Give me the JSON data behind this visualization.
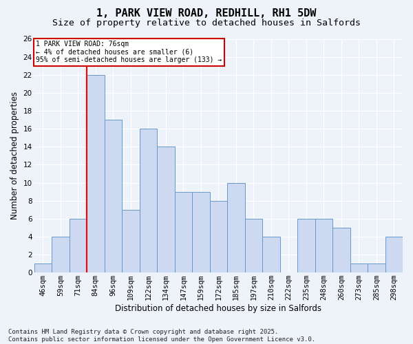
{
  "title": "1, PARK VIEW ROAD, REDHILL, RH1 5DW",
  "subtitle": "Size of property relative to detached houses in Salfords",
  "xlabel": "Distribution of detached houses by size in Salfords",
  "ylabel": "Number of detached properties",
  "categories": [
    "46sqm",
    "59sqm",
    "71sqm",
    "84sqm",
    "96sqm",
    "109sqm",
    "122sqm",
    "134sqm",
    "147sqm",
    "159sqm",
    "172sqm",
    "185sqm",
    "197sqm",
    "210sqm",
    "222sqm",
    "235sqm",
    "248sqm",
    "260sqm",
    "273sqm",
    "285sqm",
    "298sqm"
  ],
  "values": [
    1,
    4,
    6,
    22,
    17,
    7,
    16,
    14,
    9,
    9,
    8,
    10,
    6,
    4,
    0,
    6,
    6,
    5,
    1,
    1,
    4
  ],
  "bar_color": "#ccd9f0",
  "bar_edge_color": "#6699cc",
  "red_line_index": 2,
  "ylim": [
    0,
    26
  ],
  "yticks": [
    0,
    2,
    4,
    6,
    8,
    10,
    12,
    14,
    16,
    18,
    20,
    22,
    24,
    26
  ],
  "annotation_text": "1 PARK VIEW ROAD: 76sqm\n← 4% of detached houses are smaller (6)\n95% of semi-detached houses are larger (133) →",
  "annotation_box_color": "#ffffff",
  "annotation_box_edge": "#cc0000",
  "footer_text": "Contains HM Land Registry data © Crown copyright and database right 2025.\nContains public sector information licensed under the Open Government Licence v3.0.",
  "background_color": "#eef2f9",
  "grid_color": "#ffffff",
  "title_fontsize": 11,
  "subtitle_fontsize": 9.5,
  "axis_label_fontsize": 8.5,
  "tick_fontsize": 7.5,
  "footer_fontsize": 6.5
}
